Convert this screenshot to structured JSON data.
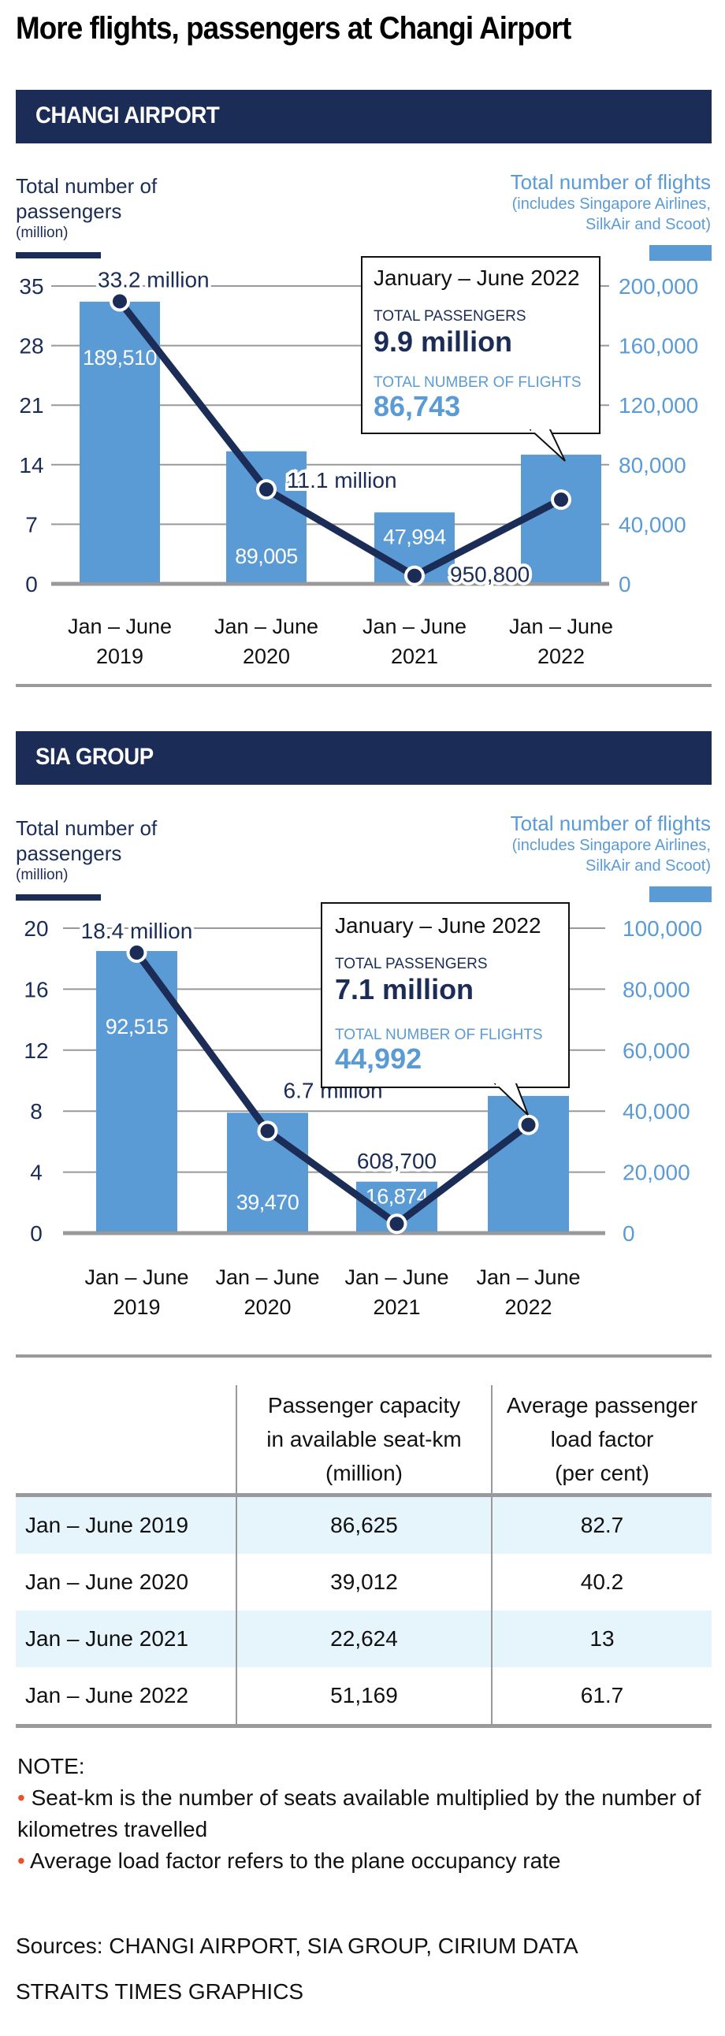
{
  "title": "More flights, passengers at Changi Airport",
  "colors": {
    "navy": "#1b2d57",
    "bar": "#5b9bd5",
    "grid": "#999999",
    "row_tint": "#e6f4fc",
    "bullet": "#e8522a"
  },
  "changi": {
    "section": "CHANGI AIRPORT",
    "left_axis": {
      "line1": "Total number of",
      "line2": "passengers",
      "unit": "(million)"
    },
    "right_axis": {
      "line1": "Total number of flights",
      "line2": "(includes Singapore Airlines,",
      "line3": "SilkAir and Scoot)"
    },
    "callout": {
      "period": "January – June 2022",
      "pass_label": "TOTAL PASSENGERS",
      "pass_value": "9.9 million",
      "flights_label": "TOTAL NUMBER OF FLIGHTS",
      "flights_value": "86,743"
    }
  },
  "sia": {
    "section": "SIA GROUP",
    "left_axis": {
      "line1": "Total number of",
      "line2": "passengers",
      "unit": "(million)"
    },
    "right_axis": {
      "line1": "Total number of flights",
      "line2": "(includes Singapore Airlines,",
      "line3": "SilkAir and Scoot)"
    },
    "callout": {
      "period": "January – June 2022",
      "pass_label": "TOTAL PASSENGERS",
      "pass_value": "7.1 million",
      "flights_label": "TOTAL NUMBER OF FLIGHTS",
      "flights_value": "44,992"
    }
  },
  "chart_data": [
    {
      "type": "bar",
      "title": "CHANGI AIRPORT",
      "categories": [
        [
          "Jan – June",
          "2019"
        ],
        [
          "Jan – June",
          "2020"
        ],
        [
          "Jan – June",
          "2021"
        ],
        [
          "Jan – June",
          "2022"
        ]
      ],
      "series": [
        {
          "name": "Total number of flights",
          "axis": "right",
          "kind": "bar",
          "values": [
            189510,
            89005,
            47994,
            86743
          ],
          "labels": [
            "189,510",
            "89,005",
            "47,994",
            ""
          ]
        },
        {
          "name": "Total number of passengers (million)",
          "axis": "left",
          "kind": "line",
          "values": [
            33.2,
            11.1,
            0.9508,
            9.9
          ],
          "labels": [
            "33.2 million",
            "11.1 million",
            "950,800",
            ""
          ]
        }
      ],
      "left_ticks": [
        0,
        7,
        14,
        21,
        28,
        35
      ],
      "right_ticks": [
        "0",
        "40,000",
        "80,000",
        "120,000",
        "160,000",
        "200,000"
      ],
      "ylim_left": [
        0,
        35
      ],
      "ylim_right": [
        0,
        200000
      ]
    },
    {
      "type": "bar",
      "title": "SIA GROUP",
      "categories": [
        [
          "Jan – June",
          "2019"
        ],
        [
          "Jan – June",
          "2020"
        ],
        [
          "Jan – June",
          "2021"
        ],
        [
          "Jan – June",
          "2022"
        ]
      ],
      "series": [
        {
          "name": "Total number of flights",
          "axis": "right",
          "kind": "bar",
          "values": [
            92515,
            39470,
            16874,
            44992
          ],
          "labels": [
            "92,515",
            "39,470",
            "16,874",
            ""
          ]
        },
        {
          "name": "Total number of passengers (million)",
          "axis": "left",
          "kind": "line",
          "values": [
            18.4,
            6.7,
            0.6087,
            7.1
          ],
          "labels": [
            "18.4 million",
            "6.7 million",
            "608,700",
            ""
          ]
        }
      ],
      "left_ticks": [
        0,
        4,
        8,
        12,
        16,
        20
      ],
      "right_ticks": [
        "0",
        "20,000",
        "40,000",
        "60,000",
        "80,000",
        "100,000"
      ],
      "ylim_left": [
        0,
        20
      ],
      "ylim_right": [
        0,
        100000
      ]
    }
  ],
  "table": {
    "headers": [
      "",
      "Passenger capacity\nin available seat-km\n(million)",
      "Average passenger\nload factor\n(per cent)"
    ],
    "rows": [
      [
        "Jan – June 2019",
        "86,625",
        "82.7"
      ],
      [
        "Jan – June 2020",
        "39,012",
        "40.2"
      ],
      [
        "Jan – June 2021",
        "22,624",
        "13"
      ],
      [
        "Jan – June 2022",
        "51,169",
        "61.7"
      ]
    ]
  },
  "note": {
    "heading": "NOTE:",
    "bullets": [
      "Seat-km is the number of seats available multiplied by the number of kilometres travelled",
      "Average load factor refers to the plane occupancy rate"
    ]
  },
  "sources": "Sources: CHANGI AIRPORT, SIA GROUP, CIRIUM DATA",
  "credit": "STRAITS TIMES GRAPHICS"
}
